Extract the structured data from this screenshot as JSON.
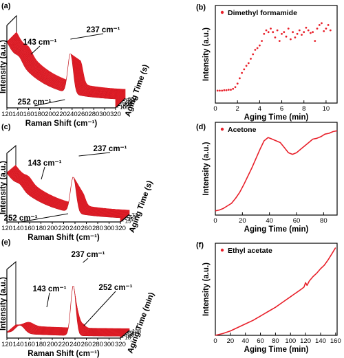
{
  "figure": {
    "panels": [
      {
        "id": "a",
        "label": "(a)"
      },
      {
        "id": "b",
        "label": "(b)"
      },
      {
        "id": "c",
        "label": "(c)"
      },
      {
        "id": "d",
        "label": "(d)"
      },
      {
        "id": "e",
        "label": "(e)"
      },
      {
        "id": "f",
        "label": "(f)"
      }
    ]
  },
  "colors": {
    "series": "#e8202a",
    "dark_series": "#c0121b",
    "axis": "#000000"
  },
  "chart_data": [
    {
      "panel": "a",
      "type": "line",
      "style": "3d-waterfall",
      "xlabel": "Raman Shift (cm⁻¹)",
      "ylabel": "Intensity (a.u.)",
      "zlabel": "Aging Time (s)",
      "x_ticks": [
        "120",
        "140",
        "160",
        "180",
        "200",
        "220",
        "240",
        "260",
        "280",
        "300",
        "320"
      ],
      "xlim": [
        120,
        320
      ],
      "z_ticks": [
        "105",
        "205",
        "305",
        "404",
        "504",
        "604"
      ],
      "annotations": [
        "143 cm⁻¹",
        "237 cm⁻¹",
        "252 cm⁻¹"
      ],
      "peaks": [
        143,
        237,
        252
      ],
      "series_count": 45
    },
    {
      "panel": "b",
      "type": "scatter",
      "legend": "Dimethyl formamide",
      "xlabel": "Aging Time (min)",
      "ylabel": "Intensity (a.u.)",
      "xlim": [
        0,
        11
      ],
      "ylim": [
        0,
        1.1
      ],
      "x_ticks": [
        "0",
        "2",
        "4",
        "6",
        "8",
        "10"
      ],
      "x": [
        0.2,
        0.4,
        0.6,
        0.8,
        1.0,
        1.2,
        1.4,
        1.6,
        1.8,
        2.0,
        2.2,
        2.4,
        2.6,
        2.8,
        3.0,
        3.2,
        3.4,
        3.6,
        3.8,
        4.0,
        4.2,
        4.4,
        4.6,
        4.8,
        5.0,
        5.2,
        5.4,
        5.6,
        5.8,
        6.0,
        6.2,
        6.4,
        6.6,
        6.8,
        7.0,
        7.2,
        7.4,
        7.6,
        7.8,
        8.0,
        8.2,
        8.4,
        8.6,
        8.8,
        9.0,
        9.2,
        9.4,
        9.6,
        9.8,
        10.0,
        10.2,
        10.4
      ],
      "y": [
        0.14,
        0.14,
        0.14,
        0.145,
        0.145,
        0.15,
        0.15,
        0.16,
        0.18,
        0.22,
        0.28,
        0.34,
        0.38,
        0.42,
        0.45,
        0.5,
        0.55,
        0.6,
        0.62,
        0.65,
        0.7,
        0.78,
        0.82,
        0.8,
        0.84,
        0.8,
        0.74,
        0.82,
        0.7,
        0.78,
        0.8,
        0.75,
        0.84,
        0.72,
        0.8,
        0.74,
        0.78,
        0.82,
        0.77,
        0.8,
        0.85,
        0.82,
        0.79,
        0.8,
        0.7,
        0.84,
        0.88,
        0.9,
        0.81,
        0.84,
        0.88,
        0.82
      ]
    },
    {
      "panel": "c",
      "type": "line",
      "style": "3d-waterfall",
      "xlabel": "Raman Shift (cm⁻¹)",
      "ylabel": "Intensity (a.u.)",
      "zlabel": "Aging Time (s)",
      "x_ticks": [
        "120",
        "140",
        "160",
        "180",
        "200",
        "220",
        "240",
        "260",
        "280",
        "300",
        "320"
      ],
      "xlim": [
        120,
        320
      ],
      "z_ticks": [
        "15",
        "35",
        "53",
        "73"
      ],
      "annotations": [
        "143 cm⁻¹",
        "237 cm⁻¹",
        "252 cm⁻¹"
      ],
      "peaks": [
        143,
        237,
        252
      ],
      "series_count": 45
    },
    {
      "panel": "d",
      "type": "line",
      "legend": "Acetone",
      "xlabel": "Aging Time (min)",
      "ylabel": "Intensity (a.u.)",
      "xlim": [
        0,
        90
      ],
      "ylim": [
        0,
        1.1
      ],
      "x_ticks": [
        "0",
        "20",
        "40",
        "60",
        "80"
      ],
      "x": [
        0,
        3,
        6,
        9,
        12,
        15,
        18,
        21,
        24,
        27,
        30,
        33,
        36,
        39,
        42,
        45,
        48,
        51,
        54,
        57,
        60,
        63,
        66,
        69,
        72,
        75,
        78,
        81,
        84,
        87,
        90
      ],
      "y": [
        0.05,
        0.06,
        0.08,
        0.11,
        0.14,
        0.2,
        0.27,
        0.36,
        0.46,
        0.56,
        0.67,
        0.78,
        0.88,
        0.92,
        0.9,
        0.88,
        0.86,
        0.8,
        0.74,
        0.72,
        0.74,
        0.78,
        0.82,
        0.86,
        0.9,
        0.91,
        0.93,
        0.96,
        0.97,
        0.99,
        1.0
      ]
    },
    {
      "panel": "e",
      "type": "line",
      "style": "3d-waterfall",
      "xlabel": "Raman Shift (cm⁻¹)",
      "ylabel": "Intensity (a.u.)",
      "zlabel": "Aging Time (min)",
      "x_ticks": [
        "120",
        "140",
        "160",
        "180",
        "200",
        "220",
        "240",
        "260",
        "280",
        "300",
        "320"
      ],
      "xlim": [
        120,
        320
      ],
      "z_ticks": [
        "18",
        "38",
        "58",
        "98",
        "138"
      ],
      "annotations": [
        "237 cm⁻¹",
        "143 cm⁻¹",
        "252 cm⁻¹"
      ],
      "peaks": [
        143,
        237,
        252
      ],
      "series_count": 35
    },
    {
      "panel": "f",
      "type": "line",
      "legend": "Ethyl acetate",
      "xlabel": "Aging Time (min)",
      "ylabel": "Intensity (a.u.)",
      "xlim": [
        0,
        162
      ],
      "ylim": [
        0,
        1.05
      ],
      "x_ticks": [
        "0",
        "20",
        "40",
        "60",
        "80",
        "100",
        "120",
        "140",
        "160"
      ],
      "x": [
        0,
        10,
        20,
        30,
        40,
        50,
        60,
        70,
        80,
        90,
        100,
        105,
        110,
        115,
        118,
        120,
        122,
        125,
        130,
        135,
        140,
        145,
        150,
        155,
        160
      ],
      "y": [
        0.0,
        0.02,
        0.05,
        0.09,
        0.13,
        0.17,
        0.22,
        0.27,
        0.32,
        0.38,
        0.44,
        0.47,
        0.5,
        0.53,
        0.55,
        0.6,
        0.57,
        0.62,
        0.67,
        0.71,
        0.76,
        0.8,
        0.86,
        0.93,
        1.0
      ]
    }
  ]
}
